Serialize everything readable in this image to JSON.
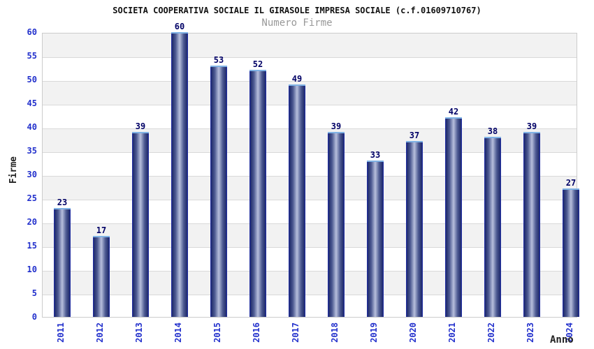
{
  "chart_data": {
    "type": "bar",
    "title": "SOCIETA COOPERATIVA SOCIALE IL GIRASOLE IMPRESA SOCIALE (c.f.01609710767)",
    "subtitle": "Numero Firme",
    "xlabel": "Anno",
    "ylabel": "Firme",
    "categories": [
      "2011",
      "2012",
      "2013",
      "2014",
      "2015",
      "2016",
      "2017",
      "2018",
      "2019",
      "2020",
      "2021",
      "2022",
      "2023",
      "2024"
    ],
    "values": [
      23,
      17,
      39,
      60,
      53,
      52,
      49,
      39,
      33,
      37,
      42,
      38,
      39,
      27
    ],
    "ylim": [
      0,
      60
    ],
    "ytick_step": 5,
    "grid": "horizontal-bands-alternating",
    "legend": "none",
    "value_labels": "above-bars",
    "colors": {
      "bar_edge": "#1e2db4",
      "bar_dark": "#232e6e",
      "bar_light": "#b7bfdc",
      "bar_top_border": "#7fb2e5",
      "axis_tick_label": "#2230cc",
      "value_label": "#000066",
      "title": "#111111",
      "subtitle": "#999999",
      "band_alt": "#f2f2f2",
      "band_main": "#ffffff",
      "grid_line": "#d9d9d9",
      "plot_border": "#cccccc"
    }
  }
}
